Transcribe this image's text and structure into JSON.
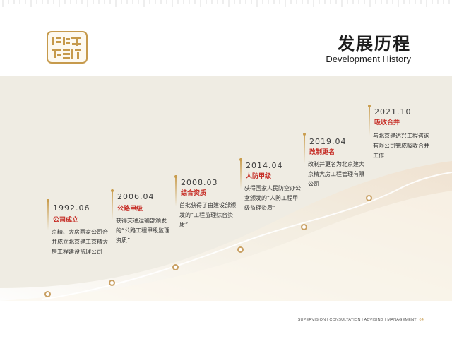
{
  "header": {
    "title_cn": "发展历程",
    "title_en": "Development History",
    "logo_icon": "seal-logo-icon"
  },
  "timeline": [
    {
      "year": "1992.06",
      "event": "公司成立",
      "description": "京精、大房两家公司合并成立北京建工京精大房工程建设监理公司"
    },
    {
      "year": "2006.04",
      "event": "公路甲级",
      "description": "获得交通运输部颁发的“公路工程甲级监理资质”"
    },
    {
      "year": "2008.03",
      "event": "综合资质",
      "description": "首批获得了由建设部颁发的“工程监理综合资质”"
    },
    {
      "year": "2014.04",
      "event": "人防甲级",
      "description": "获得国家人民防空办公室颁发的“人防工程甲级监理资质”"
    },
    {
      "year": "2019.04",
      "event": "改制更名",
      "description": "改制并更名为北京建大京精大房工程管理有限公司"
    },
    {
      "year": "2021.10",
      "event": "吸收合并",
      "description": "与北京建达兴工程咨询有限公司完成吸收合并工作"
    }
  ],
  "footer": {
    "services": "SUPERVISION | CONSULTATION | ADVISING | MANAGEMENT",
    "page": "04"
  },
  "colors": {
    "accent_gold": "#c99d4e",
    "event_red": "#c62d26",
    "band_bg": "#efece3"
  }
}
